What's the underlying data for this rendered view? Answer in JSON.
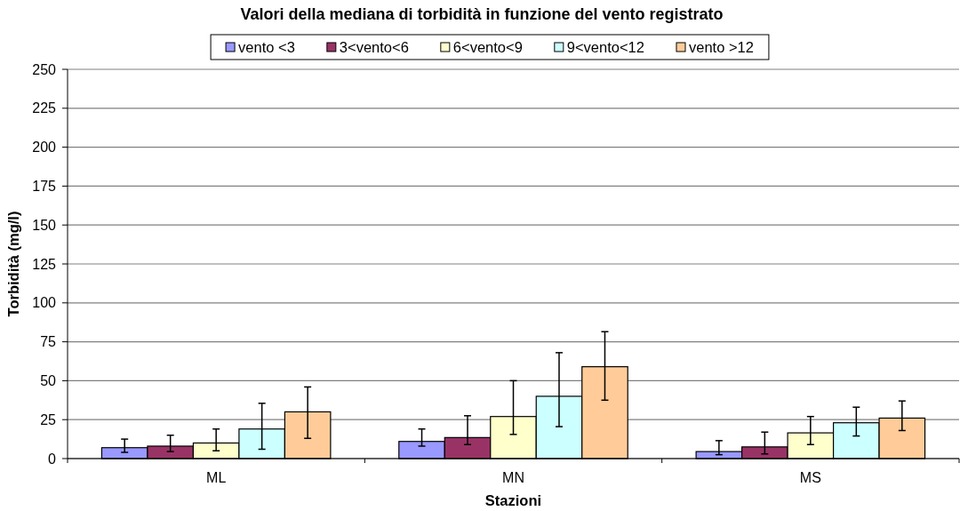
{
  "chart_data": {
    "type": "bar",
    "title": "Valori della mediana di torbidità in funzione del vento registrato",
    "xlabel": "Stazioni",
    "ylabel": "Torbidità (mg/l)",
    "categories": [
      "ML",
      "MN",
      "MS"
    ],
    "series": [
      {
        "name": "vento <3",
        "color": "#9999ff",
        "values": [
          7,
          11,
          4.5
        ],
        "errors": [
          [
            4,
            12.5
          ],
          [
            8,
            19
          ],
          [
            2.5,
            11.5
          ]
        ]
      },
      {
        "name": "3<vento<6",
        "color": "#993366",
        "values": [
          8,
          13.5,
          7.5
        ],
        "errors": [
          [
            4.5,
            15
          ],
          [
            9,
            27.5
          ],
          [
            3,
            17
          ]
        ]
      },
      {
        "name": "6<vento<9",
        "color": "#ffffcc",
        "values": [
          10,
          27,
          16.5
        ],
        "errors": [
          [
            5,
            19
          ],
          [
            15.5,
            50
          ],
          [
            9,
            27
          ]
        ]
      },
      {
        "name": "9<vento<12",
        "color": "#ccffff",
        "values": [
          19,
          40,
          23
        ],
        "errors": [
          [
            6,
            35.5
          ],
          [
            20.5,
            68
          ],
          [
            14.5,
            33
          ]
        ]
      },
      {
        "name": "vento >12",
        "color": "#ffcc99",
        "values": [
          30,
          59,
          26
        ],
        "errors": [
          [
            13,
            46
          ],
          [
            37.5,
            81.5
          ],
          [
            18,
            37
          ]
        ]
      }
    ],
    "ylim": [
      0,
      250
    ],
    "yticks": [
      0,
      25,
      50,
      75,
      100,
      125,
      150,
      175,
      200,
      225,
      250
    ],
    "grid": "y",
    "legend": "top"
  }
}
